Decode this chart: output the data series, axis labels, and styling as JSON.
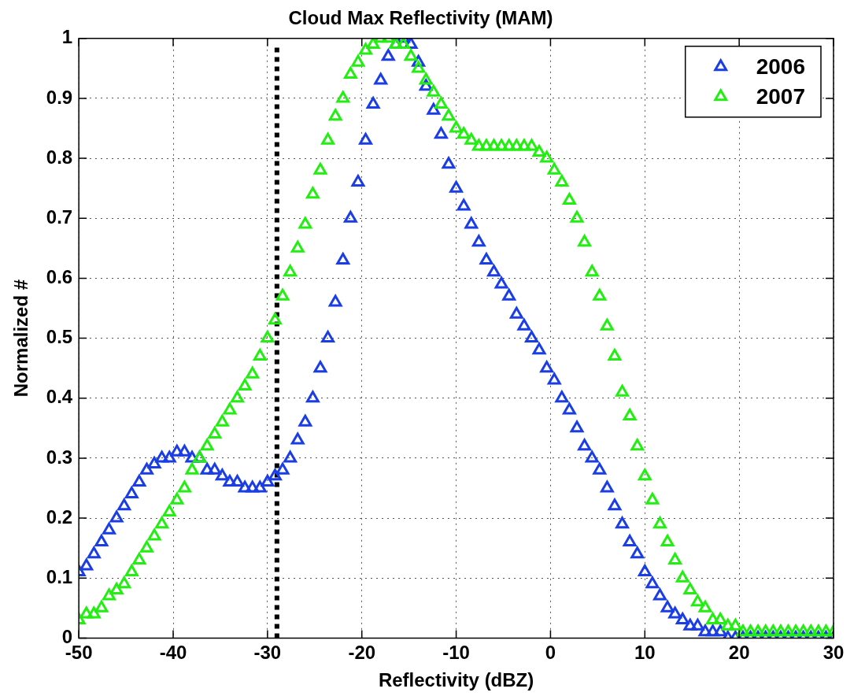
{
  "chart_data": {
    "type": "scatter",
    "title": "Cloud Max Reflectivity (MAM)",
    "xlabel": "Reflectivity (dBZ)",
    "ylabel": "Normalized #",
    "x": [
      -50,
      -49.2,
      -48.4,
      -47.6,
      -46.8,
      -46,
      -45.2,
      -44.4,
      -43.6,
      -42.8,
      -42,
      -41.2,
      -40.4,
      -39.6,
      -38.8,
      -38,
      -37.2,
      -36.4,
      -35.6,
      -34.8,
      -34,
      -33.2,
      -32.4,
      -31.6,
      -30.8,
      -30,
      -29.2,
      -28.4,
      -27.6,
      -26.8,
      -26,
      -25.2,
      -24.4,
      -23.6,
      -22.8,
      -22,
      -21.2,
      -20.4,
      -19.6,
      -18.8,
      -18,
      -17.2,
      -16.4,
      -15.6,
      -14.8,
      -14,
      -13.2,
      -12.4,
      -11.6,
      -10.8,
      -10,
      -9.2,
      -8.4,
      -7.6,
      -6.8,
      -6,
      -5.2,
      -4.4,
      -3.6,
      -2.8,
      -2,
      -1.2,
      -0.4,
      0.4,
      1.2,
      2,
      2.8,
      3.6,
      4.4,
      5.2,
      6,
      6.8,
      7.6,
      8.4,
      9.2,
      10,
      10.8,
      11.6,
      12.4,
      13.2,
      14,
      14.8,
      15.6,
      16.4,
      17.2,
      18,
      18.8,
      19.6,
      20.4,
      21.2,
      22,
      22.8,
      23.6,
      24.4,
      25.2,
      26,
      26.8,
      27.6,
      28.4,
      29.2,
      30
    ],
    "series": [
      {
        "name": "2006",
        "color": "#1a3de6",
        "values": [
          0.11,
          0.12,
          0.14,
          0.16,
          0.18,
          0.2,
          0.22,
          0.24,
          0.26,
          0.28,
          0.29,
          0.3,
          0.3,
          0.31,
          0.31,
          0.3,
          0.3,
          0.28,
          0.28,
          0.27,
          0.26,
          0.26,
          0.25,
          0.25,
          0.25,
          0.26,
          0.27,
          0.28,
          0.3,
          0.33,
          0.36,
          0.4,
          0.45,
          0.5,
          0.56,
          0.63,
          0.7,
          0.76,
          0.83,
          0.89,
          0.93,
          0.97,
          0.99,
          1.0,
          0.99,
          0.96,
          0.92,
          0.88,
          0.84,
          0.79,
          0.75,
          0.72,
          0.69,
          0.66,
          0.63,
          0.61,
          0.59,
          0.57,
          0.54,
          0.52,
          0.5,
          0.48,
          0.45,
          0.43,
          0.4,
          0.38,
          0.35,
          0.32,
          0.3,
          0.28,
          0.25,
          0.22,
          0.19,
          0.16,
          0.14,
          0.11,
          0.09,
          0.07,
          0.05,
          0.04,
          0.03,
          0.02,
          0.02,
          0.01,
          0.01,
          0.01,
          0,
          0,
          0,
          0,
          0,
          0,
          0,
          0,
          0,
          0,
          0,
          0,
          0,
          0,
          0
        ]
      },
      {
        "name": "2007",
        "color": "#22ee11",
        "values": [
          0.03,
          0.04,
          0.04,
          0.05,
          0.07,
          0.08,
          0.09,
          0.11,
          0.13,
          0.15,
          0.17,
          0.19,
          0.21,
          0.23,
          0.25,
          0.28,
          0.3,
          0.32,
          0.34,
          0.36,
          0.38,
          0.4,
          0.42,
          0.44,
          0.47,
          0.5,
          0.53,
          0.57,
          0.61,
          0.65,
          0.69,
          0.74,
          0.78,
          0.83,
          0.87,
          0.9,
          0.94,
          0.96,
          0.98,
          0.99,
          1.0,
          1.0,
          0.99,
          0.99,
          0.97,
          0.95,
          0.93,
          0.91,
          0.89,
          0.87,
          0.85,
          0.84,
          0.83,
          0.82,
          0.82,
          0.82,
          0.82,
          0.82,
          0.82,
          0.82,
          0.82,
          0.81,
          0.8,
          0.78,
          0.76,
          0.73,
          0.7,
          0.66,
          0.61,
          0.57,
          0.52,
          0.47,
          0.41,
          0.37,
          0.32,
          0.27,
          0.23,
          0.19,
          0.16,
          0.13,
          0.1,
          0.08,
          0.06,
          0.05,
          0.03,
          0.03,
          0.02,
          0.02,
          0.01,
          0.01,
          0.01,
          0.01,
          0.01,
          0.01,
          0.01,
          0.01,
          0.01,
          0.01,
          0.01,
          0.01,
          0.01
        ]
      }
    ],
    "xlim": [
      -50,
      30
    ],
    "xticks": [
      -50,
      -40,
      -30,
      -20,
      -10,
      0,
      10,
      20,
      30
    ],
    "ylim": [
      0,
      1
    ],
    "yticks": [
      0,
      0.1,
      0.2,
      0.3,
      0.4,
      0.5,
      0.6,
      0.7,
      0.8,
      0.9,
      1
    ],
    "ref_lines": [
      {
        "axis": "x",
        "value": -29,
        "color": "#000000",
        "line_style": "dotted"
      }
    ],
    "grid": true,
    "legend": "top right",
    "marker": "triangle"
  }
}
